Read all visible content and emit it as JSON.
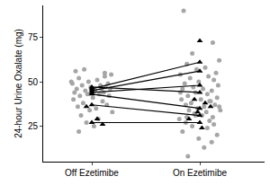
{
  "chart_data": {
    "type": "scatter",
    "y_label": "24-hour Urine Oxalate (mg)",
    "xlim": [
      0.55,
      2.6
    ],
    "xticks": [
      {
        "value": 1,
        "label": "Off Ezetimibe"
      },
      {
        "value": 2,
        "label": "On Ezetimibe"
      }
    ],
    "ylim": [
      5,
      93
    ],
    "yticks": [
      25,
      50,
      75
    ],
    "grid": false,
    "series": [
      {
        "color": "#a6a6a6",
        "marker": "circle",
        "x": [
          0.85,
          1.12,
          0.93,
          1.18,
          0.88,
          1.05,
          0.97,
          1.15,
          0.82,
          1.08,
          0.91,
          1.13,
          0.99,
          0.86,
          1.17,
          0.94,
          1.03,
          0.84,
          1.11,
          0.96,
          1.07,
          0.89,
          1.16,
          1.01,
          0.83,
          1.1,
          0.92,
          1.14,
          0.87,
          1.04,
          0.98,
          1.19,
          0.9,
          1.06,
          0.95,
          1.02,
          0.88,
          1.12,
          0.81,
          1.09
        ],
        "values": [
          56,
          55,
          57,
          54,
          52,
          51,
          50,
          49,
          49,
          48,
          48,
          47,
          47,
          46,
          46,
          45,
          45,
          44,
          44,
          43,
          43,
          42,
          42,
          41,
          40,
          39,
          38,
          37,
          36,
          35,
          34,
          33,
          31,
          29,
          27,
          25,
          22,
          53,
          50,
          46
        ]
      },
      {
        "color": "#a6a6a6",
        "marker": "circle",
        "x": [
          1.85,
          2.12,
          1.93,
          2.18,
          1.88,
          2.05,
          1.97,
          2.15,
          1.82,
          2.08,
          1.91,
          2.13,
          1.99,
          1.86,
          2.17,
          1.94,
          2.03,
          1.84,
          2.11,
          1.96,
          2.07,
          1.89,
          2.16,
          2.01,
          1.83,
          2.1,
          1.92,
          2.14,
          1.87,
          2.04,
          1.98,
          2.19,
          1.9,
          2.06,
          1.95,
          2.02,
          1.88,
          2.12,
          1.81,
          2.09,
          1.87,
          2.13,
          1.93,
          2.07,
          1.84,
          2.16,
          1.99,
          2.11,
          1.89,
          2.04,
          1.82,
          2.18,
          1.96,
          2.09
        ],
        "values": [
          90,
          72,
          66,
          62,
          60,
          58,
          57,
          55,
          54,
          53,
          52,
          51,
          50,
          49,
          48,
          47,
          46,
          46,
          45,
          44,
          43,
          42,
          41,
          40,
          40,
          39,
          38,
          37,
          37,
          36,
          35,
          34,
          34,
          33,
          32,
          31,
          30,
          30,
          29,
          28,
          27,
          26,
          25,
          24,
          22,
          20,
          18,
          16,
          8,
          13,
          44,
          36,
          31,
          39
        ]
      },
      {
        "color": "#000000",
        "marker": "triangle-up",
        "x": [
          1.05,
          0.95,
          1.1,
          2.0,
          1.95,
          2.05,
          2.1,
          1.98,
          2.02,
          1.9
        ],
        "values": [
          29,
          36,
          26,
          73,
          40,
          38,
          36,
          33,
          24,
          29
        ]
      },
      {
        "color": "#000000",
        "marker": "triangle-up",
        "line_style": "solid",
        "x": [
          1,
          2,
          null,
          1,
          2,
          null,
          1,
          2,
          null,
          1,
          2,
          null,
          1,
          2,
          null,
          1,
          2,
          null,
          1,
          2
        ],
        "values": [
          46,
          61,
          null,
          45,
          56,
          null,
          44,
          48,
          null,
          47,
          44,
          null,
          43,
          35,
          null,
          37,
          31,
          null,
          27,
          27
        ]
      }
    ]
  }
}
